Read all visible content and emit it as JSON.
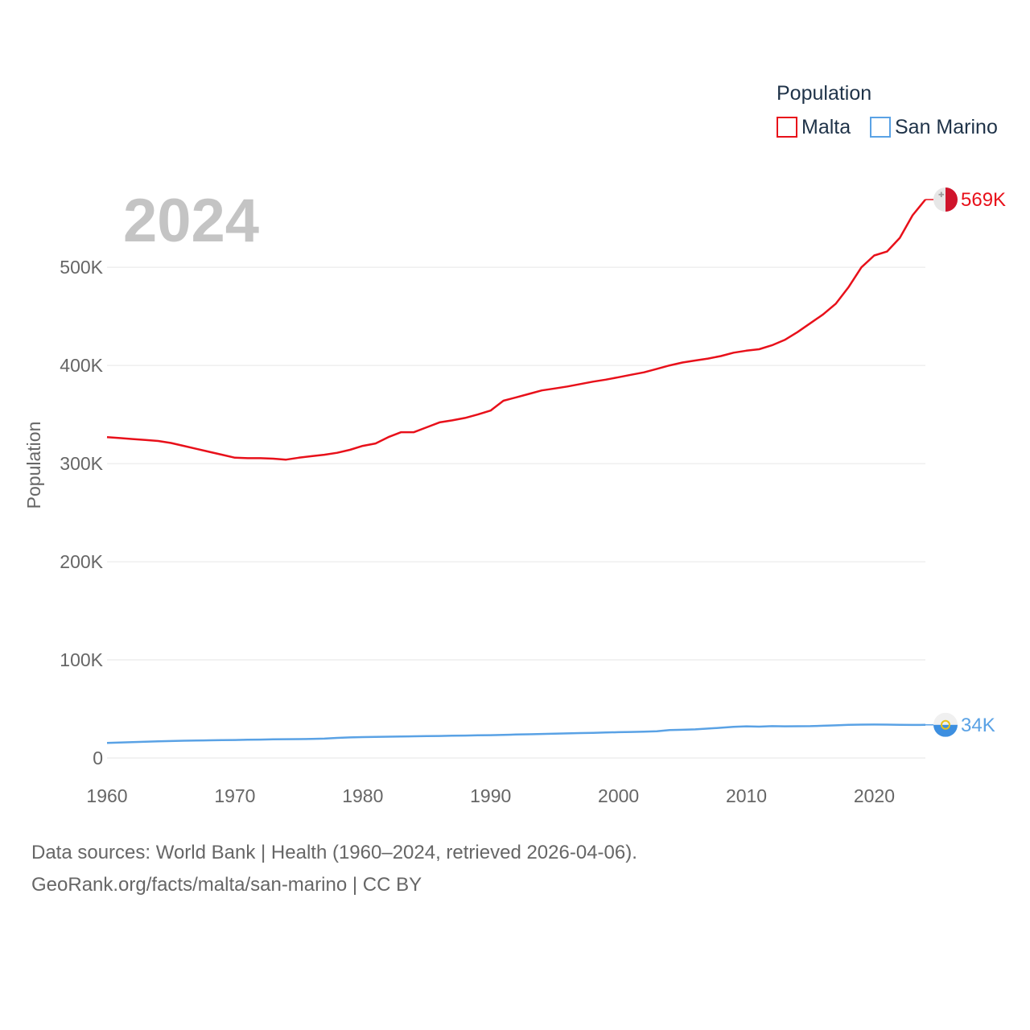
{
  "chart_data": {
    "type": "line",
    "title": "",
    "year_label": "2024",
    "xlabel": "",
    "ylabel": "Population",
    "xlim": [
      1960,
      2024
    ],
    "ylim": [
      0,
      569000
    ],
    "x_ticks": [
      1960,
      1970,
      1980,
      1990,
      2000,
      2010,
      2020
    ],
    "y_ticks": [
      {
        "value": 0,
        "label": "0"
      },
      {
        "value": 100000,
        "label": "100K"
      },
      {
        "value": 200000,
        "label": "200K"
      },
      {
        "value": 300000,
        "label": "300K"
      },
      {
        "value": 400000,
        "label": "400K"
      },
      {
        "value": 500000,
        "label": "500K"
      }
    ],
    "legend": {
      "title": "Population",
      "position": "top-right"
    },
    "grid": true,
    "series": [
      {
        "name": "Malta",
        "color": "#e8101a",
        "end_label": "569K",
        "flag_icon": "malta-flag-icon",
        "x": [
          1960,
          1961,
          1962,
          1963,
          1964,
          1965,
          1966,
          1967,
          1968,
          1969,
          1970,
          1971,
          1972,
          1973,
          1974,
          1975,
          1976,
          1977,
          1978,
          1979,
          1980,
          1981,
          1982,
          1983,
          1984,
          1985,
          1986,
          1987,
          1988,
          1989,
          1990,
          1991,
          1992,
          1993,
          1994,
          1995,
          1996,
          1997,
          1998,
          1999,
          2000,
          2001,
          2002,
          2003,
          2004,
          2005,
          2006,
          2007,
          2008,
          2009,
          2010,
          2011,
          2012,
          2013,
          2014,
          2015,
          2016,
          2017,
          2018,
          2019,
          2020,
          2021,
          2022,
          2023,
          2024
        ],
        "values": [
          327000,
          326000,
          325000,
          324000,
          323000,
          321000,
          318000,
          315000,
          312000,
          309000,
          306000,
          305500,
          305500,
          305000,
          304000,
          306000,
          307500,
          309000,
          311000,
          314000,
          318000,
          320500,
          327000,
          332000,
          332000,
          337000,
          342000,
          344000,
          346500,
          350000,
          354000,
          364000,
          367500,
          371000,
          374500,
          376500,
          378500,
          381000,
          383500,
          385500,
          388000,
          390500,
          393000,
          396500,
          400000,
          403000,
          405000,
          407000,
          409500,
          413000,
          415000,
          416500,
          420500,
          426000,
          434000,
          443000,
          452000,
          463000,
          480000,
          500000,
          512000,
          516000,
          530000,
          553000,
          569000
        ]
      },
      {
        "name": "San Marino",
        "color": "#5aa2e5",
        "end_label": "34K",
        "flag_icon": "san-marino-flag-icon",
        "x": [
          1960,
          1961,
          1962,
          1963,
          1964,
          1965,
          1966,
          1967,
          1968,
          1969,
          1970,
          1971,
          1972,
          1973,
          1974,
          1975,
          1976,
          1977,
          1978,
          1979,
          1980,
          1981,
          1982,
          1983,
          1984,
          1985,
          1986,
          1987,
          1988,
          1989,
          1990,
          1991,
          1992,
          1993,
          1994,
          1995,
          1996,
          1997,
          1998,
          1999,
          2000,
          2001,
          2002,
          2003,
          2004,
          2005,
          2006,
          2007,
          2008,
          2009,
          2010,
          2011,
          2012,
          2013,
          2014,
          2015,
          2016,
          2017,
          2018,
          2019,
          2020,
          2021,
          2022,
          2023,
          2024
        ],
        "values": [
          15400,
          15800,
          16200,
          16600,
          17000,
          17300,
          17600,
          17800,
          18000,
          18200,
          18400,
          18600,
          18800,
          19000,
          19200,
          19300,
          19400,
          19800,
          20500,
          21000,
          21300,
          21500,
          21700,
          21900,
          22100,
          22300,
          22500,
          22700,
          22900,
          23100,
          23300,
          23600,
          23900,
          24200,
          24500,
          24800,
          25100,
          25400,
          25700,
          26000,
          26300,
          26600,
          26900,
          27200,
          28500,
          28800,
          29200,
          30000,
          30800,
          31800,
          32300,
          32000,
          32500,
          32300,
          32400,
          32500,
          32900,
          33300,
          33800,
          34000,
          34100,
          34000,
          33800,
          33700,
          33800
        ]
      }
    ]
  },
  "footer": {
    "sources": "Data sources: World Bank | Health (1960–2024, retrieved 2026-04-06).",
    "credit": "GeoRank.org/facts/malta/san-marino | CC BY"
  }
}
